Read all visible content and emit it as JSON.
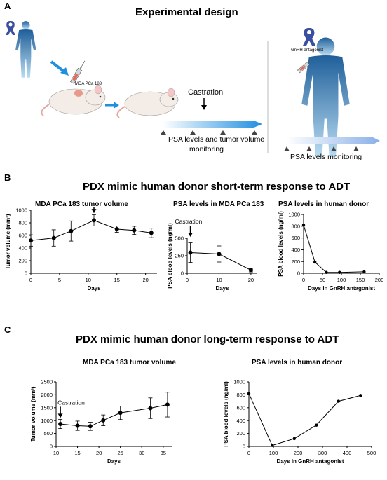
{
  "panelA": {
    "letter": "A",
    "title": "Experimental design",
    "mouse_label": "MDA PCa 183",
    "castration": "Castration",
    "timeline_text_1": "PSA levels and tumor volume",
    "timeline_text_2": "monitoring",
    "gnrh_label": "GnRH antagonist",
    "human_timeline_text": "PSA levels monitoring"
  },
  "panelB": {
    "letter": "B",
    "title": "PDX mimic human donor short-term response to ADT"
  },
  "panelC": {
    "letter": "C",
    "title": "PDX mimic human donor long-term response to ADT"
  },
  "colors": {
    "human_top": "#1f5f9a",
    "human_bottom": "#b9dcf2",
    "arrow_blue": "#1f8fe0",
    "ribbon": "#3b4fa0"
  },
  "chart_data": [
    {
      "id": "b1",
      "type": "line",
      "title": "MDA PCa 183 tumor volume",
      "xlabel": "Days",
      "ylabel": "Tumor volume (mm³)",
      "x": [
        0,
        4,
        7,
        11,
        15,
        18,
        21
      ],
      "y": [
        520,
        560,
        670,
        840,
        700,
        680,
        640
      ],
      "err": [
        90,
        130,
        160,
        90,
        50,
        65,
        75
      ],
      "xlim": [
        0,
        22
      ],
      "ylim": [
        0,
        1000
      ],
      "xticks": [
        0,
        5,
        10,
        15,
        20
      ],
      "yticks": [
        0,
        200,
        400,
        600,
        800,
        1000
      ],
      "annotation": {
        "text": "Castration",
        "x": 11
      }
    },
    {
      "id": "b2",
      "type": "line",
      "title": "PSA levels in MDA PCa 183",
      "xlabel": "Days",
      "ylabel": "PSA blood levels (ng/ml)",
      "x": [
        1,
        10,
        20
      ],
      "y": [
        295,
        275,
        45
      ],
      "err": [
        140,
        115,
        25
      ],
      "xlim": [
        0,
        22
      ],
      "ylim": [
        0,
        500
      ],
      "xticks": [
        0,
        10,
        20
      ],
      "yticks": [
        0,
        250,
        500
      ],
      "annotation": {
        "text": "Castration",
        "x": 1
      }
    },
    {
      "id": "b3",
      "type": "line",
      "title": "PSA levels in human donor",
      "xlabel": "Days in GnRH antagonist",
      "ylabel": "PSA blood levels (ng/ml)",
      "x": [
        0,
        30,
        60,
        95,
        160
      ],
      "y": [
        820,
        190,
        15,
        15,
        25
      ],
      "xlim": [
        0,
        200
      ],
      "ylim": [
        0,
        1000
      ],
      "xticks": [
        0,
        50,
        100,
        150,
        200
      ],
      "yticks": [
        0,
        200,
        400,
        600,
        800,
        1000
      ]
    },
    {
      "id": "c1",
      "type": "line",
      "title": "MDA PCa 183 tumor volume",
      "xlabel": "Days",
      "ylabel": "Tumor volume (mm³)",
      "x": [
        11,
        15,
        18,
        21,
        25,
        32,
        36
      ],
      "y": [
        870,
        800,
        780,
        1010,
        1300,
        1480,
        1620
      ],
      "err": [
        180,
        180,
        160,
        210,
        260,
        400,
        480
      ],
      "xlim": [
        10,
        37
      ],
      "ylim": [
        0,
        2500
      ],
      "xticks": [
        10,
        15,
        20,
        25,
        30,
        35
      ],
      "yticks": [
        0,
        500,
        1000,
        1500,
        2000,
        2500
      ],
      "annotation": {
        "text": "Castration",
        "x": 11
      }
    },
    {
      "id": "c2",
      "type": "line",
      "title": "PSA levels in human donor",
      "xlabel": "Days in GnRH antagonist",
      "ylabel": "PSA blood levels (ng/ml)",
      "x": [
        0,
        95,
        185,
        275,
        365,
        455
      ],
      "y": [
        820,
        15,
        120,
        330,
        700,
        790
      ],
      "xlim": [
        0,
        500
      ],
      "ylim": [
        0,
        1000
      ],
      "xticks": [
        0,
        100,
        200,
        300,
        400,
        500
      ],
      "yticks": [
        0,
        200,
        400,
        600,
        800,
        1000
      ]
    }
  ]
}
